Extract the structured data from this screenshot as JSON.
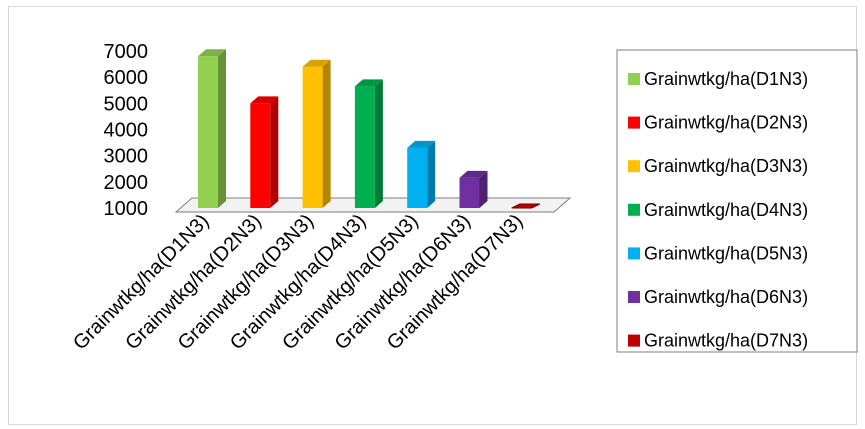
{
  "chart_data": {
    "type": "bar",
    "title": "",
    "xlabel": "",
    "ylabel": "",
    "ylim": [
      1000,
      7000
    ],
    "yticks": [
      1000,
      2000,
      3000,
      4000,
      5000,
      6000,
      7000
    ],
    "grid": false,
    "legend_position": "right",
    "three_d": true,
    "categories": [
      "Grainwtkg/ha(D1N3)",
      "Grainwtkg/ha(D2N3)",
      "Grainwtkg/ha(D3N3)",
      "Grainwtkg/ha(D4N3)",
      "Grainwtkg/ha(D5N3)",
      "Grainwtkg/ha(D6N3)",
      "Grainwtkg/ha(D7N3)"
    ],
    "series": [
      {
        "name": "Grainwtkg/ha(D1N3)",
        "color": "#92d050",
        "values": [
          6800,
          null,
          null,
          null,
          null,
          null,
          null
        ]
      },
      {
        "name": "Grainwtkg/ha(D2N3)",
        "color": "#ff0000",
        "values": [
          null,
          5000,
          null,
          null,
          null,
          null,
          null
        ]
      },
      {
        "name": "Grainwtkg/ha(D3N3)",
        "color": "#ffc000",
        "values": [
          null,
          null,
          6400,
          null,
          null,
          null,
          null
        ]
      },
      {
        "name": "Grainwtkg/ha(D4N3)",
        "color": "#00b050",
        "values": [
          null,
          null,
          null,
          5650,
          null,
          null,
          null
        ]
      },
      {
        "name": "Grainwtkg/ha(D5N3)",
        "color": "#00b0f0",
        "values": [
          null,
          null,
          null,
          null,
          3300,
          null,
          null
        ]
      },
      {
        "name": "Grainwtkg/ha(D6N3)",
        "color": "#7030a0",
        "values": [
          null,
          null,
          null,
          null,
          null,
          2150,
          null
        ]
      },
      {
        "name": "Grainwtkg/ha(D7N3)",
        "color": "#c00000",
        "values": [
          null,
          null,
          null,
          null,
          null,
          null,
          1000
        ]
      }
    ]
  }
}
